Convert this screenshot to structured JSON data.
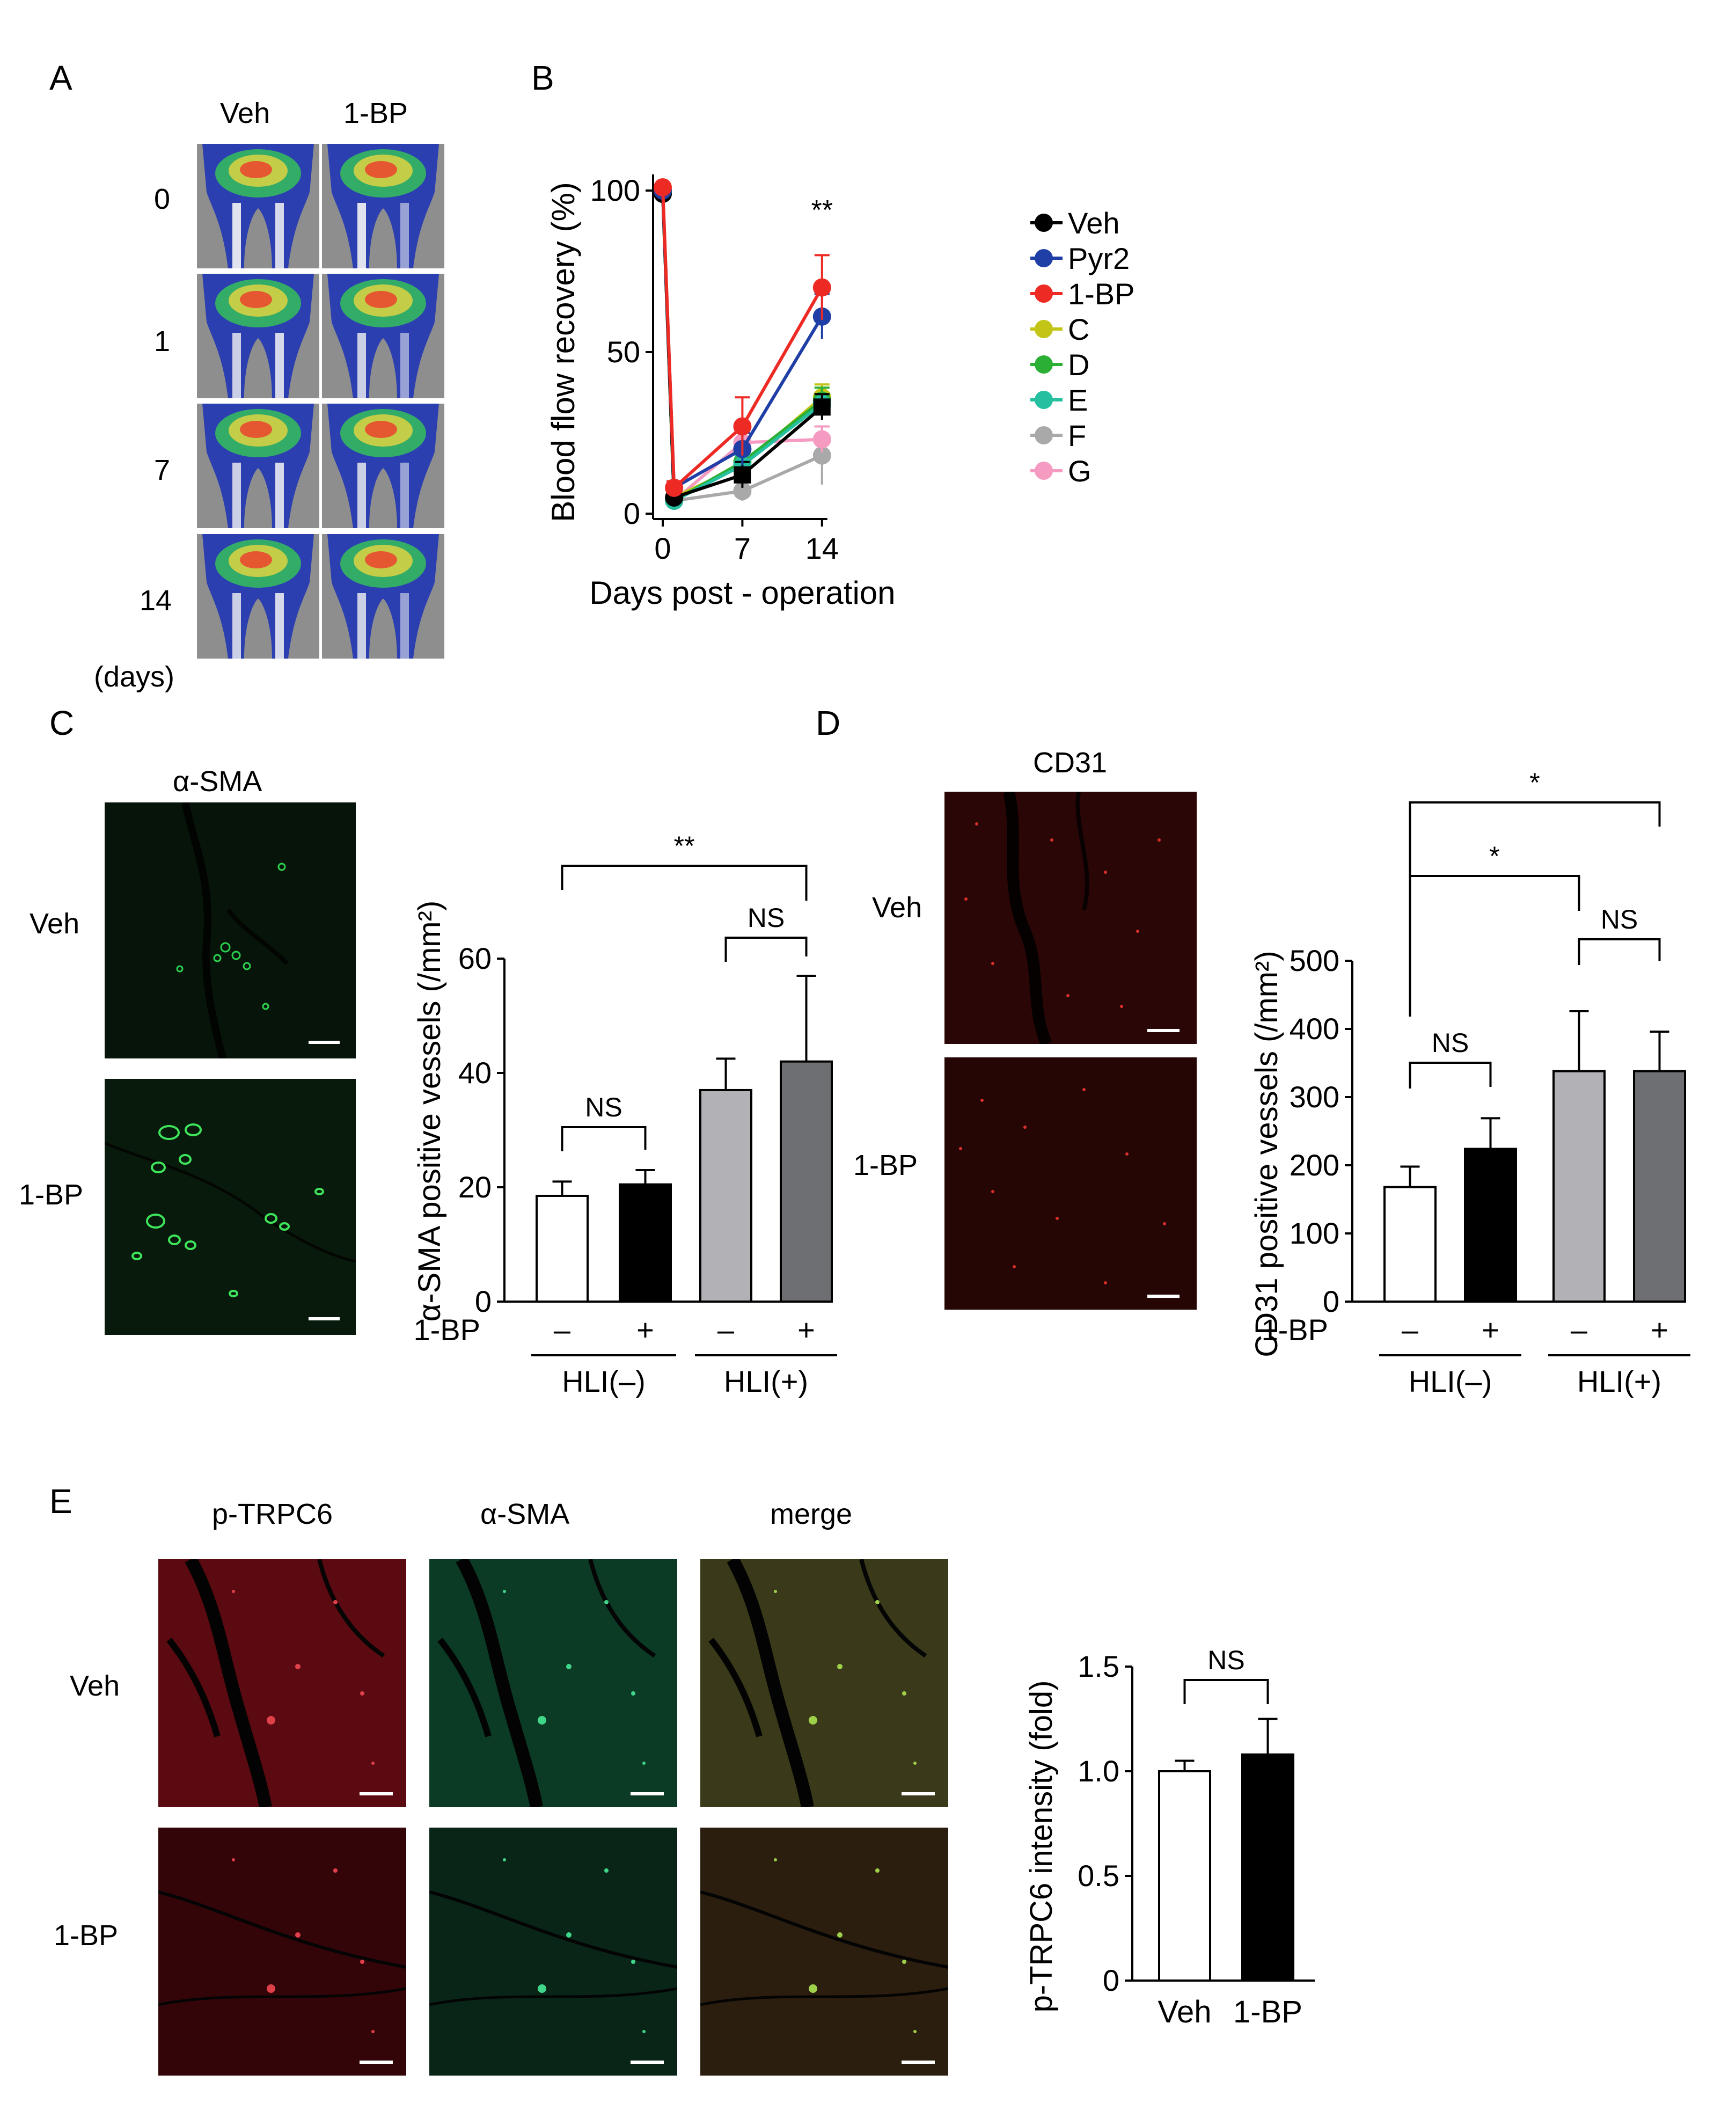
{
  "panel_letters": [
    "A",
    "B",
    "C",
    "D",
    "E"
  ],
  "panelA": {
    "col_headers": [
      "Veh",
      "1-BP"
    ],
    "row_labels": [
      "0",
      "1",
      "7",
      "14"
    ],
    "unit_label": "(days)"
  },
  "panelC": {
    "image_title": "α-SMA",
    "row_labels": [
      "Veh",
      "1-BP"
    ]
  },
  "panelD": {
    "image_title": "CD31",
    "row_labels": [
      "Veh",
      "1-BP"
    ]
  },
  "panelE": {
    "col_headers": [
      "p-TRPC6",
      "α-SMA",
      "merge"
    ],
    "row_labels": [
      "Veh",
      "1-BP"
    ]
  },
  "colors": {
    "Veh": "#000000",
    "Pyr2": "#1f3fa6",
    "1-BP": "#ee2a24",
    "C": "#c2c416",
    "D": "#2bb035",
    "E": "#26c0a0",
    "F": "#a9a9a9",
    "G": "#f59bc2",
    "bar_white": "#ffffff",
    "bar_black": "#000000",
    "bar_lightgray": "#b2b2b6",
    "bar_darkgray": "#6e6f72"
  },
  "chart_data": [
    {
      "id": "B",
      "type": "line",
      "ylabel": "Blood flow recovery (%)",
      "xlabel": "Days post - operation",
      "x": [
        0,
        1,
        7,
        14
      ],
      "xticks": [
        "0",
        "7",
        "14"
      ],
      "yticks": [
        "0",
        "50",
        "100"
      ],
      "ylim": [
        0,
        100
      ],
      "annotation": "**",
      "series": [
        {
          "name": "Veh",
          "values": [
            99,
            5,
            12,
            33
          ],
          "err": [
            0,
            1,
            4,
            4
          ]
        },
        {
          "name": "Pyr2",
          "values": [
            100,
            8,
            20,
            61
          ],
          "err": [
            0,
            2,
            5,
            7
          ]
        },
        {
          "name": "1-BP",
          "values": [
            101,
            8,
            27,
            70
          ],
          "err": [
            0,
            2,
            9,
            10
          ]
        },
        {
          "name": "C",
          "values": [
            100,
            5,
            15,
            36
          ],
          "err": [
            0,
            1,
            4,
            4
          ]
        },
        {
          "name": "D",
          "values": [
            99,
            4,
            16,
            35
          ],
          "err": [
            0,
            1,
            4,
            4
          ]
        },
        {
          "name": "E",
          "values": [
            100,
            4,
            15,
            34
          ],
          "err": [
            0,
            1,
            3,
            3
          ]
        },
        {
          "name": "F",
          "values": [
            100,
            4,
            7,
            18
          ],
          "err": [
            0,
            1,
            3,
            9
          ]
        },
        {
          "name": "G",
          "values": [
            100,
            4,
            22,
            23
          ],
          "err": [
            0,
            1,
            4,
            4
          ]
        }
      ]
    },
    {
      "id": "C",
      "type": "bar",
      "ylabel": "α-SMA positive vessels (/mm2)",
      "yticks": [
        "0",
        "20",
        "40",
        "60"
      ],
      "ylim": [
        0,
        60
      ],
      "treatment_label": "1-BP",
      "categories": [
        "–",
        "+",
        "–",
        "+"
      ],
      "groups": [
        "HLI(–)",
        "HLI(+)"
      ],
      "values": [
        18.5,
        20.5,
        37,
        42
      ],
      "err": [
        2.5,
        2.5,
        5.5,
        15
      ],
      "comparisons": [
        {
          "from": 0,
          "to": 1,
          "label": "NS"
        },
        {
          "from": 2,
          "to": 3,
          "label": "NS"
        },
        {
          "from": 0,
          "to": 3,
          "label": "**"
        }
      ]
    },
    {
      "id": "D",
      "type": "bar",
      "ylabel": "CD31 positive vessels (/mm2)",
      "yticks": [
        "0",
        "100",
        "200",
        "300",
        "400",
        "500"
      ],
      "ylim": [
        0,
        500
      ],
      "treatment_label": "1-BP",
      "categories": [
        "–",
        "+",
        "–",
        "+"
      ],
      "groups": [
        "HLI(–)",
        "HLI(+)"
      ],
      "values": [
        168,
        224,
        338,
        338
      ],
      "err": [
        30,
        45,
        88,
        58
      ],
      "comparisons": [
        {
          "from": 0,
          "to": 1,
          "label": "NS"
        },
        {
          "from": 2,
          "to": 3,
          "label": "NS"
        },
        {
          "from": 0,
          "to": 2,
          "label": "*"
        },
        {
          "from": 0,
          "to": 3,
          "label": "*"
        }
      ]
    },
    {
      "id": "E",
      "type": "bar",
      "ylabel": "p-TRPC6 intensity (fold)",
      "yticks": [
        "0",
        "0.5",
        "1.0",
        "1.5"
      ],
      "ylim": [
        0,
        1.5
      ],
      "categories": [
        "Veh",
        "1-BP"
      ],
      "values": [
        1.0,
        1.08
      ],
      "err": [
        0.05,
        0.17
      ],
      "comparisons": [
        {
          "from": 0,
          "to": 1,
          "label": "NS"
        }
      ]
    }
  ]
}
